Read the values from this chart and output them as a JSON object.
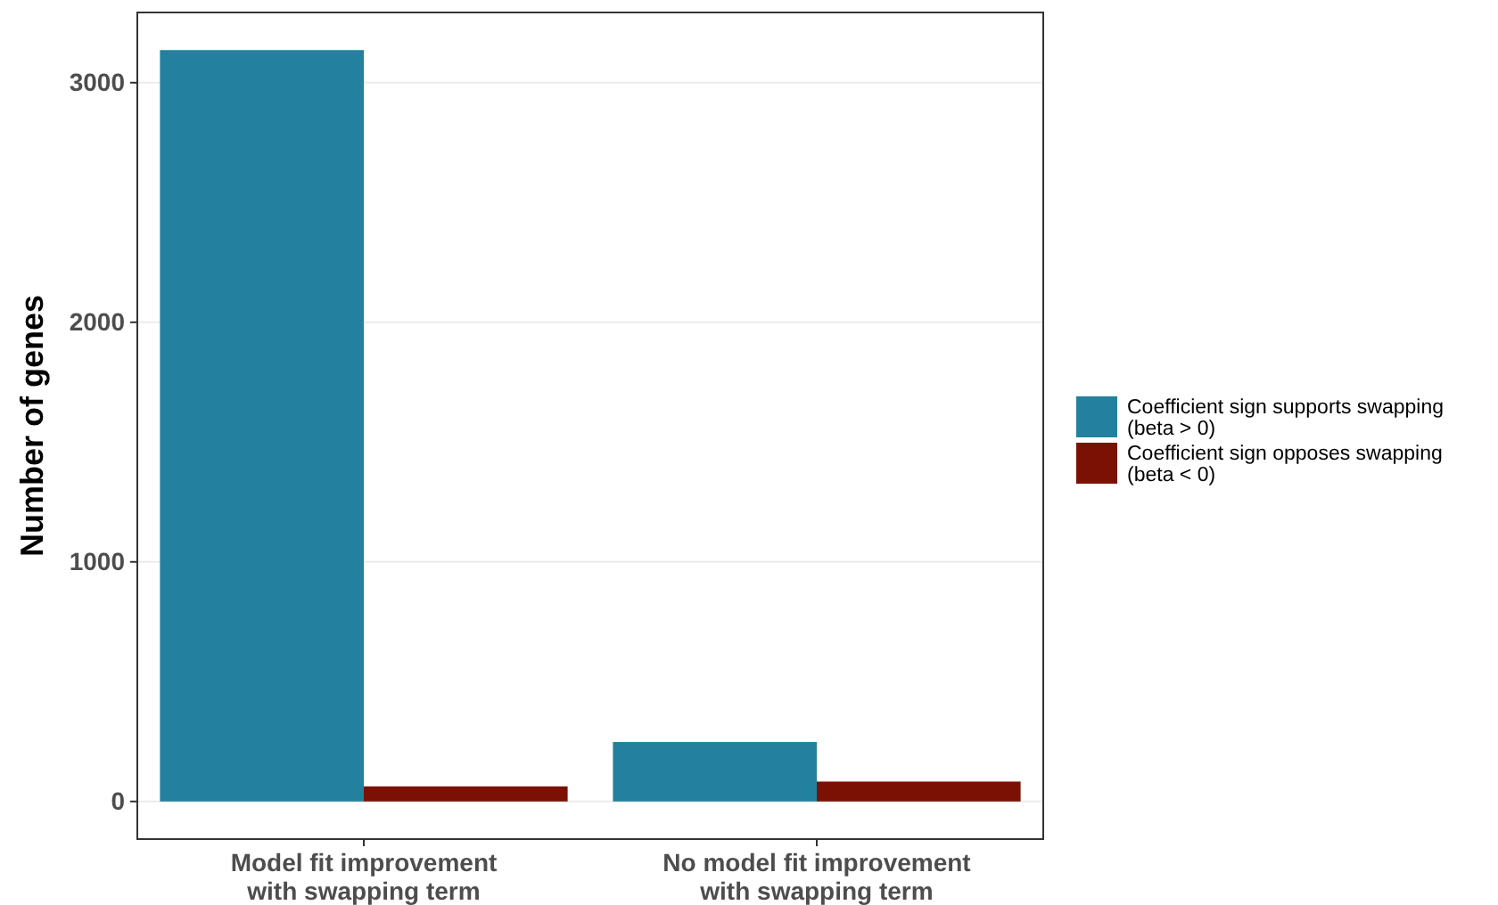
{
  "chart_data": {
    "type": "bar",
    "ylabel": "Number of genes",
    "categories": [
      "Model fit improvement\nwith swapping term",
      "No model fit improvement\nwith swapping term"
    ],
    "series": [
      {
        "name": "Coefficient sign supports swapping\n(beta > 0)",
        "color": "#23809e",
        "values": [
          3136,
          248
        ]
      },
      {
        "name": "Coefficient sign opposes swapping\n(beta < 0)",
        "color": "#7b1104",
        "values": [
          63,
          83
        ]
      }
    ],
    "ylim": [
      -157,
      3293
    ],
    "yticks": [
      0,
      1000,
      2000,
      3000
    ],
    "grid": "y",
    "legend": "right"
  }
}
